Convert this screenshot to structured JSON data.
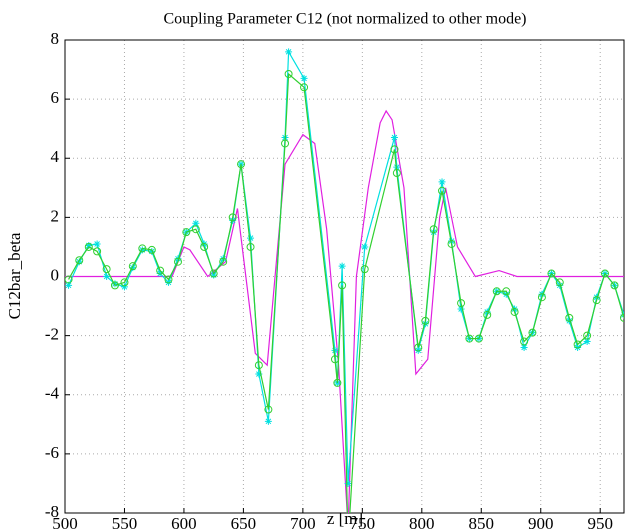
{
  "chart_data": {
    "type": "line",
    "title": "Coupling Parameter C12 (not normalized to other mode)",
    "xlabel": "z [m]",
    "ylabel": "C12bar_beta",
    "xlim": [
      500,
      970
    ],
    "xticks": [
      500,
      550,
      600,
      650,
      700,
      750,
      800,
      850,
      900,
      950
    ],
    "ylim": [
      -8,
      8
    ],
    "yticks": [
      -8,
      -6,
      -4,
      -2,
      0,
      2,
      4,
      6,
      8
    ],
    "grid": true,
    "series": [
      {
        "color": "#e020e0",
        "marker": "none",
        "x": [
          500,
          590,
          600,
          605,
          620,
          635,
          645,
          660,
          670,
          685,
          700,
          710,
          720,
          730,
          738,
          745,
          755,
          765,
          770,
          775,
          785,
          795,
          805,
          815,
          820,
          830,
          845,
          865,
          880,
          970
        ],
        "values": [
          0,
          0,
          1.0,
          0.9,
          0,
          0.5,
          2.3,
          -2.6,
          -3.0,
          3.8,
          4.8,
          4.5,
          1.6,
          -3.0,
          -8.5,
          0,
          3.0,
          5.2,
          5.6,
          5.3,
          3.0,
          -3.3,
          -2.8,
          2.0,
          3.0,
          1.0,
          0,
          0.2,
          0,
          0
        ]
      },
      {
        "color": "#00e0e0",
        "marker": "asterisk",
        "x": [
          503,
          512,
          520,
          527,
          535,
          542,
          550,
          557,
          565,
          573,
          580,
          587,
          595,
          602,
          610,
          617,
          625,
          633,
          641,
          648,
          656,
          663,
          671,
          685,
          688,
          701,
          727,
          729,
          733,
          738,
          752,
          777,
          779,
          797,
          803,
          810,
          817,
          825,
          833,
          840,
          848,
          855,
          863,
          871,
          878,
          886,
          893,
          901,
          909,
          916,
          924,
          931,
          939,
          947,
          954,
          962,
          970
        ],
        "values": [
          -0.3,
          0.5,
          1.05,
          1.1,
          0.0,
          -0.25,
          -0.35,
          0.3,
          0.9,
          0.85,
          0.1,
          -0.2,
          0.6,
          1.5,
          1.8,
          1.1,
          0.05,
          0.6,
          1.9,
          3.8,
          1.3,
          -3.3,
          -4.9,
          4.7,
          7.6,
          6.7,
          -2.5,
          -3.6,
          0.35,
          -7,
          1.0,
          4.7,
          3.7,
          -2.5,
          -1.6,
          1.5,
          3.2,
          1.2,
          -1.1,
          -2.1,
          -2.1,
          -1.2,
          -0.5,
          -0.6,
          -1.1,
          -2.4,
          -1.9,
          -0.6,
          0.1,
          -0.3,
          -1.5,
          -2.4,
          -2.2,
          -0.7,
          0.1,
          -0.3,
          -1.3
        ]
      },
      {
        "color": "#30d030",
        "marker": "circle",
        "x": [
          503,
          512,
          520,
          527,
          535,
          542,
          550,
          557,
          565,
          573,
          580,
          587,
          595,
          602,
          610,
          617,
          625,
          633,
          641,
          648,
          656,
          663,
          671,
          685,
          688,
          701,
          727,
          729,
          733,
          738,
          752,
          777,
          779,
          797,
          803,
          810,
          817,
          825,
          833,
          840,
          848,
          855,
          863,
          871,
          878,
          886,
          893,
          901,
          909,
          916,
          924,
          931,
          939,
          947,
          954,
          962,
          970
        ],
        "values": [
          -0.1,
          0.55,
          1.0,
          0.85,
          0.25,
          -0.3,
          -0.2,
          0.35,
          0.95,
          0.9,
          0.2,
          -0.1,
          0.5,
          1.5,
          1.6,
          1.0,
          0.1,
          0.5,
          2.0,
          3.8,
          1.0,
          -3.0,
          -4.5,
          4.5,
          6.85,
          6.4,
          -2.8,
          -3.6,
          -0.3,
          -9,
          0.25,
          4.3,
          3.5,
          -2.4,
          -1.5,
          1.6,
          2.9,
          1.1,
          -0.9,
          -2.1,
          -2.1,
          -1.3,
          -0.5,
          -0.5,
          -1.2,
          -2.2,
          -1.9,
          -0.7,
          0.1,
          -0.2,
          -1.4,
          -2.3,
          -2.0,
          -0.8,
          0.1,
          -0.3,
          -1.4
        ]
      }
    ]
  }
}
